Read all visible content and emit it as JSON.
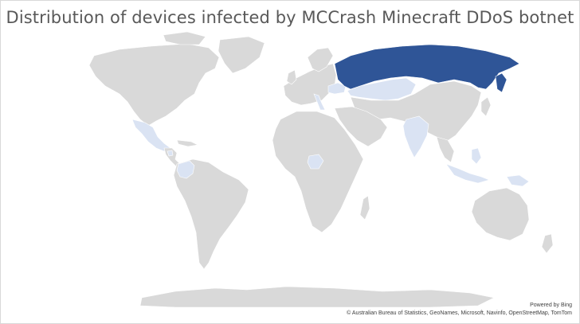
{
  "title": "Distribution of devices infected by MCCrash Minecraft DDoS botnet",
  "attribution": {
    "powered_by": "Powered by Bing",
    "sources": "© Australian Bureau of Statistics, GeoNames, Microsoft, Navinfo, OpenStreetMap, TomTom"
  },
  "colors": {
    "land": "#d9d9d9",
    "low": "#dae3f3",
    "high": "#2f5597"
  },
  "highlighted_regions": [
    {
      "name": "Russia",
      "level": "high"
    },
    {
      "name": "Kazakhstan",
      "level": "low"
    },
    {
      "name": "Ukraine",
      "level": "low"
    },
    {
      "name": "India",
      "level": "low"
    },
    {
      "name": "Mexico",
      "level": "low"
    },
    {
      "name": "Colombia",
      "level": "low"
    },
    {
      "name": "Nigeria",
      "level": "low"
    },
    {
      "name": "Italy",
      "level": "low"
    },
    {
      "name": "Indonesia",
      "level": "low"
    },
    {
      "name": "Philippines",
      "level": "low"
    },
    {
      "name": "Papua New Guinea",
      "level": "low"
    },
    {
      "name": "Nicaragua",
      "level": "low"
    }
  ]
}
